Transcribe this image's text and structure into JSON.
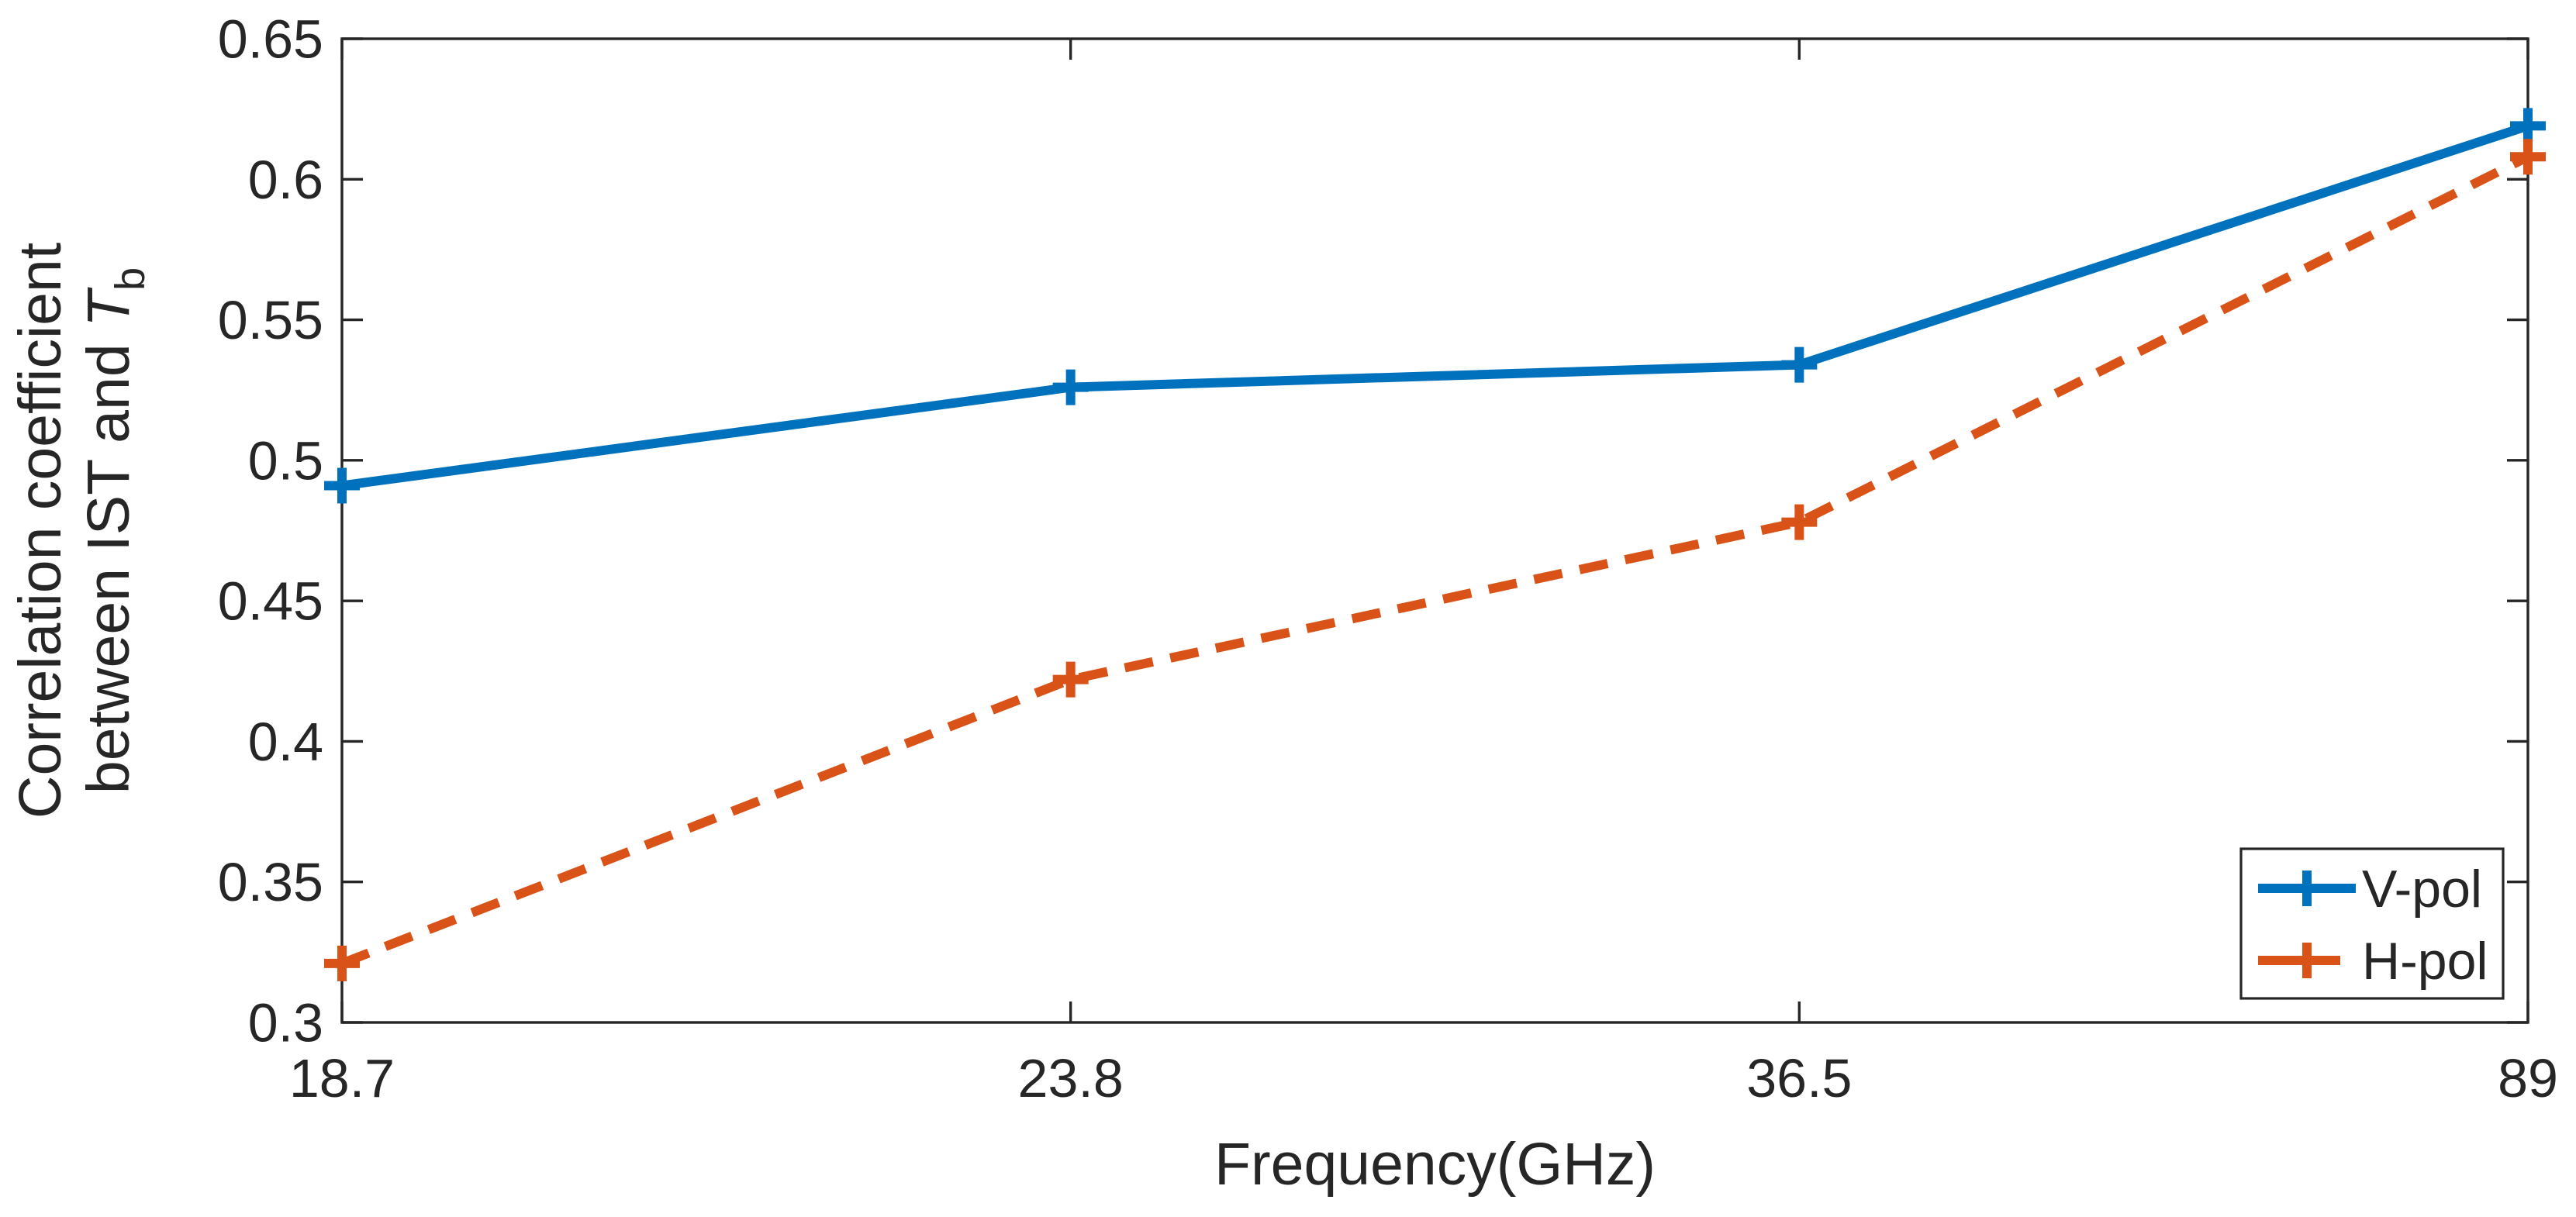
{
  "figure": {
    "background": "#ffffff"
  },
  "chart_data": {
    "type": "line",
    "title": "",
    "xlabel": "Frequency(GHz)",
    "ylabel_lines": [
      "Correlation coefficient",
      "between IST and T_b"
    ],
    "ylabel_plain": "Correlation coefficient between IST and Tb",
    "categories": [
      18.7,
      23.8,
      36.5,
      89
    ],
    "x_tick_labels": [
      "18.7",
      "23.8",
      "36.5",
      "89"
    ],
    "y_ticks": [
      0.3,
      0.35,
      0.4,
      0.45,
      0.5,
      0.55,
      0.6,
      0.65
    ],
    "y_tick_labels": [
      "0.3",
      "0.35",
      "0.4",
      "0.45",
      "0.5",
      "0.55",
      "0.6",
      "0.65"
    ],
    "ylim": [
      0.3,
      0.65
    ],
    "grid": false,
    "axis_color": "#262626",
    "series": [
      {
        "name": "V-pol",
        "color": "#0072BD",
        "line_style": "solid",
        "marker": "plus",
        "values": [
          0.491,
          0.526,
          0.534,
          0.619
        ]
      },
      {
        "name": "H-pol",
        "color": "#D95319",
        "line_style": "dashed",
        "marker": "plus",
        "values": [
          0.321,
          0.422,
          0.478,
          0.608
        ]
      }
    ],
    "legend": {
      "position": "lower-right",
      "entries": [
        "V-pol",
        "H-pol"
      ]
    }
  }
}
